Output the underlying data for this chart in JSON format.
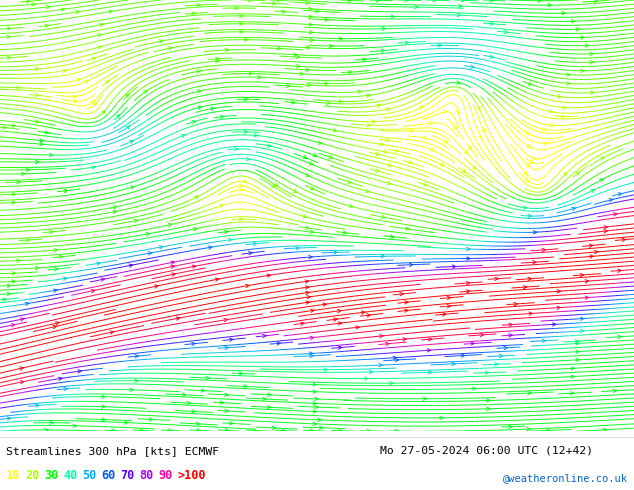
{
  "title_left": "Streamlines 300 hPa [kts] ECMWF",
  "title_right": "Mo 27-05-2024 06:00 UTC (12+42)",
  "credit": "@weatheronline.co.uk",
  "legend_values": [
    "10",
    "20",
    "30",
    "40",
    "50",
    "60",
    "70",
    "80",
    "90",
    ">100"
  ],
  "legend_colors": [
    "#ffff00",
    "#aaff00",
    "#00ff00",
    "#00ffaa",
    "#00aaff",
    "#0055ff",
    "#5500ff",
    "#aa00ff",
    "#ff00aa",
    "#ff0000"
  ],
  "bg_color": "#ffffff",
  "figsize": [
    6.34,
    4.9
  ],
  "dpi": 100,
  "cmap_nodes": [
    [
      0.0,
      "#ffff00"
    ],
    [
      0.067,
      "#ffff00"
    ],
    [
      0.133,
      "#aaff00"
    ],
    [
      0.2,
      "#00ff00"
    ],
    [
      0.267,
      "#00ffaa"
    ],
    [
      0.333,
      "#00aaff"
    ],
    [
      0.4,
      "#0055ff"
    ],
    [
      0.467,
      "#5500ff"
    ],
    [
      0.533,
      "#aa00ff"
    ],
    [
      0.6,
      "#ff00aa"
    ],
    [
      0.667,
      "#ff0055"
    ],
    [
      1.0,
      "#ff0000"
    ]
  ],
  "vmax": 120
}
